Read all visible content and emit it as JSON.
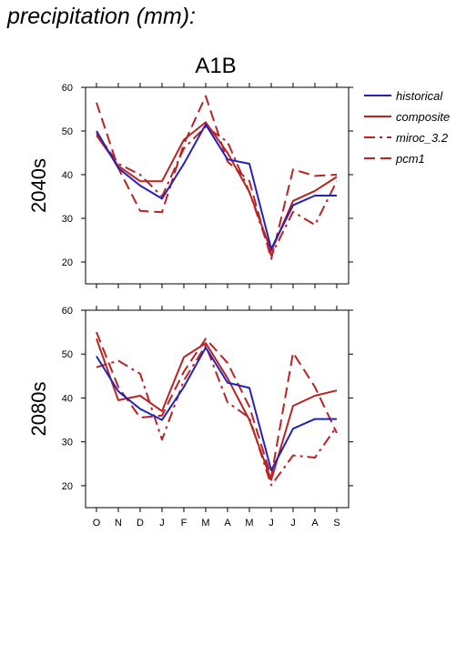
{
  "page": {
    "title": "precipitation (mm):"
  },
  "chart_data": {
    "type": "line",
    "scenario": "A1B",
    "x": [
      "O",
      "N",
      "D",
      "J",
      "F",
      "M",
      "A",
      "M",
      "J",
      "J",
      "A",
      "S"
    ],
    "ylim": [
      15,
      60
    ],
    "yticks": [
      20,
      30,
      40,
      50,
      60
    ],
    "legend_position": "right",
    "legend": [
      {
        "name": "historical",
        "color": "#2222bb",
        "dash": "solid"
      },
      {
        "name": "composite",
        "color": "#bb2222",
        "dash": "solid"
      },
      {
        "name": "miroc_3.2",
        "color": "#bb2222",
        "dash": "dashdot"
      },
      {
        "name": "pcm1",
        "color": "#bb2222",
        "dash": "dashed"
      }
    ],
    "panels": [
      {
        "ylabel": "2040s",
        "series": [
          {
            "name": "historical",
            "values": [
              50,
              41.5,
              37.5,
              34.5,
              42.5,
              51.5,
              43.5,
              42.5,
              23,
              33,
              35.2,
              35.2
            ]
          },
          {
            "name": "composite",
            "values": [
              49,
              42,
              38.5,
              38.5,
              48,
              52,
              45,
              36,
              22.5,
              34,
              36.3,
              39.5
            ]
          },
          {
            "name": "miroc_3.2",
            "values": [
              49.5,
              42.5,
              40,
              35,
              46,
              51,
              47.5,
              36,
              21.5,
              31.5,
              28.5,
              38.5
            ]
          },
          {
            "name": "pcm1",
            "values": [
              56.5,
              41.5,
              31.7,
              31.4,
              47,
              58,
              43,
              38.5,
              20.7,
              41.2,
              39.7,
              40
            ]
          }
        ]
      },
      {
        "ylabel": "2080s",
        "series": [
          {
            "name": "historical",
            "values": [
              49.5,
              41.5,
              37.5,
              35,
              42.5,
              51.5,
              43.5,
              42.3,
              23.5,
              33,
              35.2,
              35.2
            ]
          },
          {
            "name": "composite",
            "values": [
              53.5,
              39.5,
              40.5,
              37,
              49.3,
              52.5,
              44.5,
              35,
              21.3,
              38.2,
              40.5,
              41.7
            ]
          },
          {
            "name": "miroc_3.2",
            "values": [
              47,
              48.5,
              45.5,
              30.5,
              44,
              52,
              39,
              35.5,
              20.1,
              26.9,
              26.4,
              33.5
            ]
          },
          {
            "name": "pcm1",
            "values": [
              55,
              42.5,
              35.5,
              36,
              46,
              53.5,
              48,
              38,
              22,
              50.3,
              42.5,
              32
            ]
          }
        ]
      }
    ]
  }
}
